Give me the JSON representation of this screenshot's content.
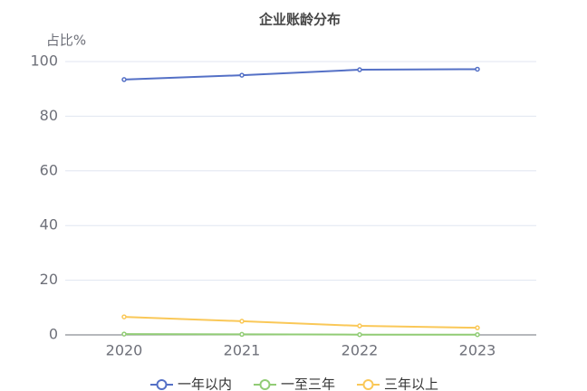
{
  "chart_data": {
    "type": "line",
    "title": "企业账龄分布",
    "y_label": "占比%",
    "categories": [
      "2020",
      "2021",
      "2022",
      "2023"
    ],
    "series": [
      {
        "name": "一年以内",
        "color": "#5470c6",
        "values": [
          93.4,
          95.0,
          97.0,
          97.2
        ]
      },
      {
        "name": "一至三年",
        "color": "#91cc75",
        "values": [
          0.3,
          0.2,
          0.1,
          0.1
        ]
      },
      {
        "name": "三年以上",
        "color": "#fac858",
        "values": [
          6.6,
          5.0,
          3.3,
          2.6
        ]
      }
    ],
    "ylim": [
      0,
      100
    ],
    "yticks": [
      0,
      20,
      40,
      60,
      80,
      100
    ],
    "grid": true,
    "legend": "bottom"
  }
}
